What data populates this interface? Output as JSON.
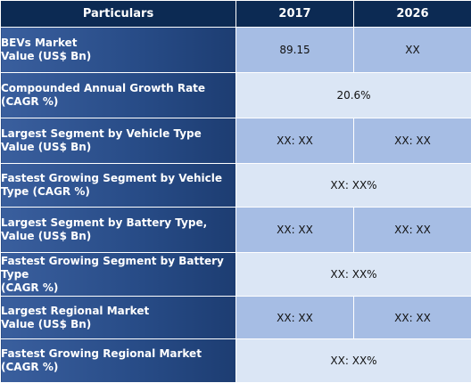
{
  "header": {
    "col_particulars": "Particulars",
    "col_2017": "2017",
    "col_2026": "2026"
  },
  "rows": [
    {
      "label": "BEVs Market\nValue (US$ Bn)",
      "v2017": "89.15",
      "v2026": "XX"
    },
    {
      "label": "Compounded Annual Growth Rate\n(CAGR %)",
      "merged": "20.6%"
    },
    {
      "label": "Largest Segment by Vehicle Type\nValue (US$ Bn)",
      "v2017": "XX: XX",
      "v2026": "XX:  XX"
    },
    {
      "label": "Fastest Growing Segment by Vehicle\nType (CAGR %)",
      "merged": "XX:  XX%"
    },
    {
      "label": "Largest Segment by Battery Type,\nValue (US$ Bn)",
      "v2017": "XX: XX",
      "v2026": "XX:  XX"
    },
    {
      "label": "Fastest Growing Segment by Battery\nType\n(CAGR %)",
      "merged": "XX:  XX%"
    },
    {
      "label": "Largest Regional Market\nValue (US$ Bn)",
      "v2017": "XX: XX",
      "v2026": "XX: XX"
    },
    {
      "label": "Fastest Growing Regional Market\n(CAGR %)",
      "merged": "XX: XX%"
    }
  ]
}
